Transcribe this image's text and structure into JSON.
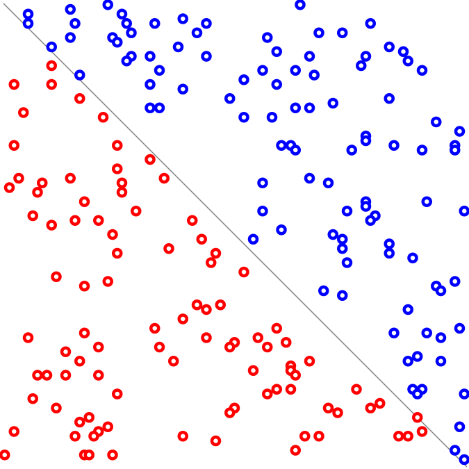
{
  "chart_data": {
    "type": "scatter",
    "title": "",
    "xlabel": "",
    "ylabel": "",
    "xlim": [
      0,
      100
    ],
    "ylim": [
      0,
      100
    ],
    "grid": false,
    "axes_visible": false,
    "marker": "ring",
    "boundary_line": {
      "points": [
        [
          0,
          100
        ],
        [
          100,
          0
        ]
      ],
      "color": "#808080"
    },
    "series": [
      {
        "color": "#0000ff",
        "points": [
          [
            6,
            97
          ],
          [
            6,
            95
          ],
          [
            15,
            98
          ],
          [
            23,
            99
          ],
          [
            16,
            95
          ],
          [
            26,
            97
          ],
          [
            27,
            95
          ],
          [
            33,
            95
          ],
          [
            39,
            96
          ],
          [
            44,
            95
          ],
          [
            42,
            93
          ],
          [
            24,
            92
          ],
          [
            28,
            93
          ],
          [
            15,
            92
          ],
          [
            25,
            91
          ],
          [
            11,
            90
          ],
          [
            28,
            88
          ],
          [
            32,
            88
          ],
          [
            27,
            87
          ],
          [
            38,
            90
          ],
          [
            44,
            88
          ],
          [
            34,
            85
          ],
          [
            17,
            84
          ],
          [
            32,
            82
          ],
          [
            39,
            81
          ],
          [
            32,
            77
          ],
          [
            34,
            77
          ],
          [
            64,
            99
          ],
          [
            79,
            95
          ],
          [
            57,
            92
          ],
          [
            68,
            93
          ],
          [
            73,
            93
          ],
          [
            59,
            89
          ],
          [
            66,
            88
          ],
          [
            78,
            88
          ],
          [
            83,
            90
          ],
          [
            86,
            89
          ],
          [
            87,
            87
          ],
          [
            77,
            86
          ],
          [
            90,
            85
          ],
          [
            56,
            85
          ],
          [
            63,
            85
          ],
          [
            52,
            83
          ],
          [
            67,
            84
          ],
          [
            59,
            82
          ],
          [
            49,
            79
          ],
          [
            83,
            79
          ],
          [
            71,
            78
          ],
          [
            63,
            77
          ],
          [
            66,
            77
          ],
          [
            52,
            75
          ],
          [
            58,
            75
          ],
          [
            93,
            74
          ],
          [
            98,
            72
          ],
          [
            78,
            71
          ],
          [
            78,
            70
          ],
          [
            84,
            69
          ],
          [
            75,
            68
          ],
          [
            90,
            68
          ],
          [
            97,
            69
          ],
          [
            97,
            68
          ],
          [
            60,
            69
          ],
          [
            62,
            69
          ],
          [
            63,
            68
          ],
          [
            66,
            62
          ],
          [
            70,
            61
          ],
          [
            56,
            61
          ],
          [
            78,
            57
          ],
          [
            78,
            56
          ],
          [
            91,
            57
          ],
          [
            99,
            55
          ],
          [
            56,
            55
          ],
          [
            74,
            55
          ],
          [
            80,
            54
          ],
          [
            79,
            53
          ],
          [
            60,
            51
          ],
          [
            54,
            49
          ],
          [
            71,
            50
          ],
          [
            73,
            49
          ],
          [
            73,
            47
          ],
          [
            83,
            48
          ],
          [
            83,
            46
          ],
          [
            88,
            45
          ],
          [
            74,
            44
          ],
          [
            69,
            38
          ],
          [
            73,
            37
          ],
          [
            93,
            39
          ],
          [
            94,
            38
          ],
          [
            97,
            40
          ],
          [
            87,
            34
          ],
          [
            84,
            29
          ],
          [
            91,
            29
          ],
          [
            94,
            28
          ],
          [
            98,
            30
          ],
          [
            87,
            23
          ],
          [
            89,
            24
          ],
          [
            94,
            23
          ],
          [
            88,
            17
          ],
          [
            90,
            17
          ],
          [
            89,
            16
          ],
          [
            99,
            16
          ],
          [
            98,
            9
          ],
          [
            97,
            4
          ],
          [
            99,
            2
          ]
        ]
      },
      {
        "color": "#ff0000",
        "points": [
          [
            11,
            86
          ],
          [
            3,
            82
          ],
          [
            11,
            82
          ],
          [
            17,
            79
          ],
          [
            5,
            76
          ],
          [
            22,
            75
          ],
          [
            3,
            69
          ],
          [
            25,
            69
          ],
          [
            32,
            66
          ],
          [
            25,
            64
          ],
          [
            15,
            62
          ],
          [
            4,
            62
          ],
          [
            2,
            60
          ],
          [
            9,
            61
          ],
          [
            35,
            62
          ],
          [
            26,
            61
          ],
          [
            26,
            59
          ],
          [
            8,
            59
          ],
          [
            18,
            57
          ],
          [
            29,
            55
          ],
          [
            7,
            54
          ],
          [
            11,
            52
          ],
          [
            16,
            53
          ],
          [
            21,
            53
          ],
          [
            24,
            50
          ],
          [
            41,
            53
          ],
          [
            43,
            49
          ],
          [
            46,
            46
          ],
          [
            45,
            44
          ],
          [
            25,
            46
          ],
          [
            36,
            47
          ],
          [
            12,
            41
          ],
          [
            18,
            39
          ],
          [
            23,
            40
          ],
          [
            52,
            42
          ],
          [
            42,
            35
          ],
          [
            44,
            34
          ],
          [
            47,
            35
          ],
          [
            39,
            32
          ],
          [
            33,
            30
          ],
          [
            59,
            30
          ],
          [
            18,
            29
          ],
          [
            6,
            28
          ],
          [
            44,
            28
          ],
          [
            55,
            28
          ],
          [
            61,
            27
          ],
          [
            50,
            27
          ],
          [
            49,
            26
          ],
          [
            57,
            26
          ],
          [
            21,
            26
          ],
          [
            34,
            26
          ],
          [
            14,
            25
          ],
          [
            17,
            23
          ],
          [
            37,
            23
          ],
          [
            66,
            23
          ],
          [
            62,
            22
          ],
          [
            54,
            21
          ],
          [
            8,
            20
          ],
          [
            10,
            20
          ],
          [
            21,
            20
          ],
          [
            14,
            20
          ],
          [
            62,
            21
          ],
          [
            63,
            20
          ],
          [
            62,
            17
          ],
          [
            59,
            17
          ],
          [
            57,
            16
          ],
          [
            76,
            17
          ],
          [
            25,
            16
          ],
          [
            7,
            15
          ],
          [
            81,
            14
          ],
          [
            70,
            13
          ],
          [
            79,
            13
          ],
          [
            50,
            13
          ],
          [
            49,
            12
          ],
          [
            72,
            12
          ],
          [
            12,
            13
          ],
          [
            17,
            10
          ],
          [
            19,
            11
          ],
          [
            23,
            9
          ],
          [
            89,
            11
          ],
          [
            3,
            8
          ],
          [
            16,
            7
          ],
          [
            21,
            8
          ],
          [
            20,
            7
          ],
          [
            90,
            8
          ],
          [
            65,
            7
          ],
          [
            68,
            7
          ],
          [
            85,
            7
          ],
          [
            87,
            7
          ],
          [
            39,
            7
          ],
          [
            46,
            6
          ],
          [
            63,
            4
          ],
          [
            1,
            3
          ],
          [
            18,
            3
          ],
          [
            19,
            3
          ],
          [
            24,
            3
          ]
        ]
      }
    ]
  }
}
